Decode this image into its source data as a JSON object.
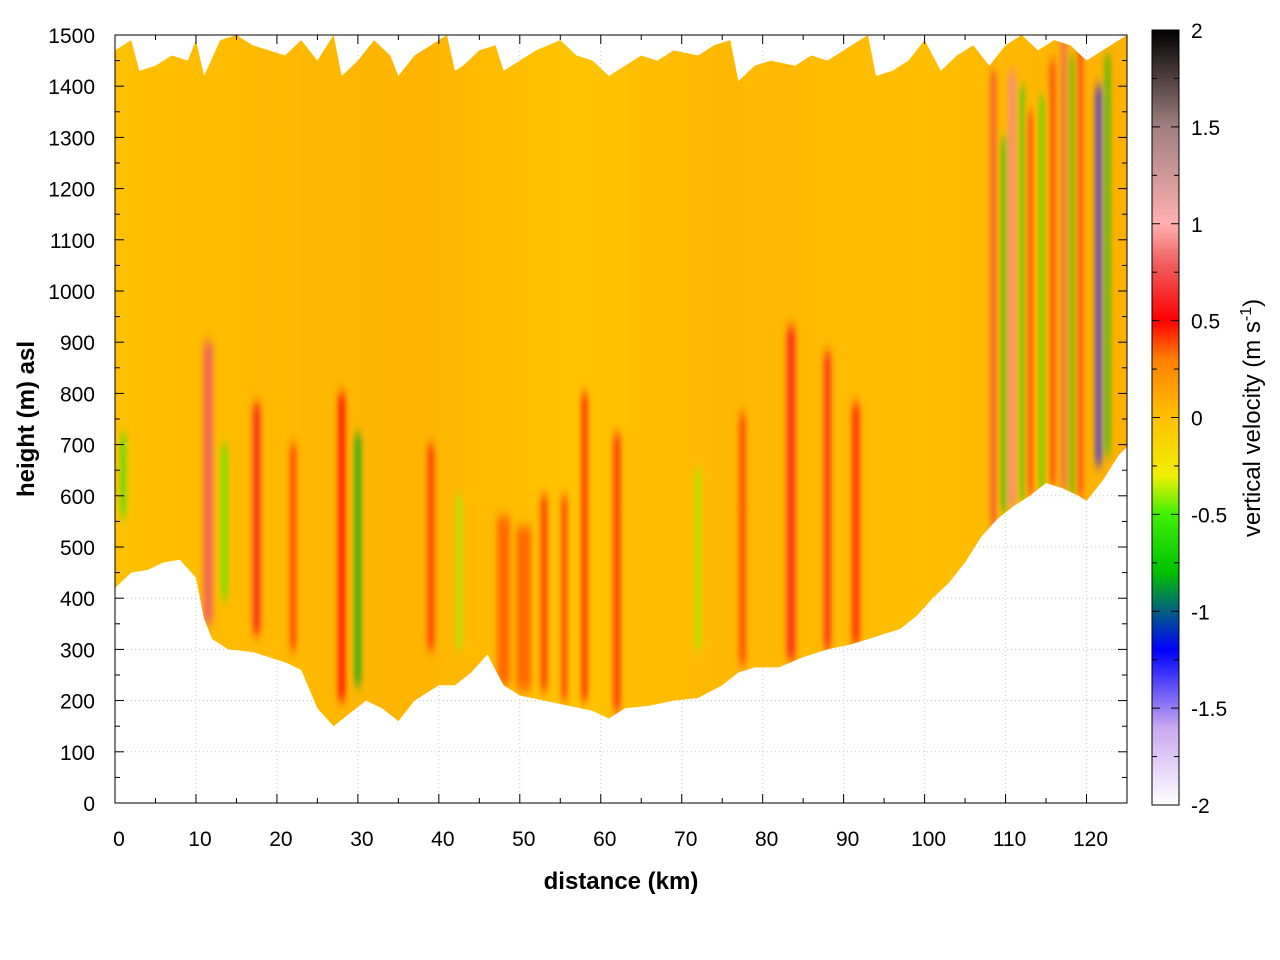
{
  "chart_data": {
    "type": "heatmap",
    "title": "",
    "xlabel": "distance (km)",
    "ylabel": "height (m) asl",
    "xlim": [
      0,
      125
    ],
    "ylim": [
      0,
      1500
    ],
    "xticks": [
      0,
      10,
      20,
      30,
      40,
      50,
      60,
      70,
      80,
      90,
      100,
      110,
      120
    ],
    "yticks": [
      0,
      100,
      200,
      300,
      400,
      500,
      600,
      700,
      800,
      900,
      1000,
      1100,
      1200,
      1300,
      1400,
      1500
    ],
    "grid": true,
    "colorbar": {
      "label_main": "vertical velocity (m s",
      "label_sup": "-1",
      "label_close": ")",
      "range": [
        -2,
        2
      ],
      "ticks": [
        "2",
        "1.5",
        "1",
        "0.5",
        "0",
        "-0.5",
        "-1",
        "-1.5",
        "-2"
      ],
      "stops": [
        {
          "v": -2.0,
          "color": "#ffffff"
        },
        {
          "v": -1.6,
          "color": "#c8a8f0"
        },
        {
          "v": -1.2,
          "color": "#0000ff"
        },
        {
          "v": -0.8,
          "color": "#00c000"
        },
        {
          "v": -0.5,
          "color": "#40f000"
        },
        {
          "v": -0.3,
          "color": "#f0f000"
        },
        {
          "v": 0.0,
          "color": "#ffc000"
        },
        {
          "v": 0.3,
          "color": "#ff8000"
        },
        {
          "v": 0.5,
          "color": "#ff0000"
        },
        {
          "v": 0.8,
          "color": "#f06060"
        },
        {
          "v": 1.0,
          "color": "#ffb0b0"
        },
        {
          "v": 1.5,
          "color": "#a08080"
        },
        {
          "v": 2.0,
          "color": "#000000"
        }
      ]
    },
    "ground_height_m": [
      [
        0,
        420
      ],
      [
        2,
        450
      ],
      [
        4,
        455
      ],
      [
        6,
        470
      ],
      [
        8,
        475
      ],
      [
        10,
        440
      ],
      [
        11,
        360
      ],
      [
        12,
        320
      ],
      [
        14,
        300
      ],
      [
        17,
        295
      ],
      [
        19,
        285
      ],
      [
        21,
        275
      ],
      [
        23,
        260
      ],
      [
        25,
        185
      ],
      [
        27,
        150
      ],
      [
        29,
        175
      ],
      [
        31,
        200
      ],
      [
        33,
        185
      ],
      [
        35,
        160
      ],
      [
        37,
        200
      ],
      [
        40,
        230
      ],
      [
        42,
        230
      ],
      [
        44,
        255
      ],
      [
        46,
        290
      ],
      [
        48,
        230
      ],
      [
        50,
        210
      ],
      [
        53,
        200
      ],
      [
        56,
        190
      ],
      [
        59,
        180
      ],
      [
        61,
        165
      ],
      [
        63,
        185
      ],
      [
        66,
        190
      ],
      [
        69,
        200
      ],
      [
        72,
        205
      ],
      [
        75,
        230
      ],
      [
        77,
        255
      ],
      [
        79,
        265
      ],
      [
        82,
        265
      ],
      [
        85,
        285
      ],
      [
        88,
        300
      ],
      [
        91,
        310
      ],
      [
        94,
        325
      ],
      [
        97,
        340
      ],
      [
        99,
        365
      ],
      [
        101,
        400
      ],
      [
        103,
        430
      ],
      [
        105,
        470
      ],
      [
        107,
        520
      ],
      [
        109,
        555
      ],
      [
        111,
        580
      ],
      [
        113,
        600
      ],
      [
        115,
        625
      ],
      [
        117,
        615
      ],
      [
        119,
        600
      ],
      [
        120,
        590
      ],
      [
        122,
        630
      ],
      [
        124,
        680
      ],
      [
        125,
        695
      ]
    ],
    "top_height_m": [
      [
        0,
        1470
      ],
      [
        2,
        1490
      ],
      [
        3,
        1430
      ],
      [
        5,
        1440
      ],
      [
        7,
        1460
      ],
      [
        9,
        1450
      ],
      [
        10,
        1490
      ],
      [
        11,
        1420
      ],
      [
        13,
        1490
      ],
      [
        15,
        1500
      ],
      [
        17,
        1480
      ],
      [
        19,
        1470
      ],
      [
        21,
        1460
      ],
      [
        23,
        1490
      ],
      [
        25,
        1450
      ],
      [
        27,
        1500
      ],
      [
        28,
        1420
      ],
      [
        30,
        1450
      ],
      [
        32,
        1490
      ],
      [
        34,
        1460
      ],
      [
        35,
        1420
      ],
      [
        37,
        1460
      ],
      [
        39,
        1480
      ],
      [
        41,
        1500
      ],
      [
        42,
        1430
      ],
      [
        43,
        1440
      ],
      [
        45,
        1470
      ],
      [
        47,
        1480
      ],
      [
        48,
        1430
      ],
      [
        50,
        1450
      ],
      [
        52,
        1470
      ],
      [
        55,
        1490
      ],
      [
        57,
        1460
      ],
      [
        59,
        1450
      ],
      [
        61,
        1420
      ],
      [
        63,
        1440
      ],
      [
        65,
        1460
      ],
      [
        67,
        1450
      ],
      [
        69,
        1470
      ],
      [
        72,
        1460
      ],
      [
        74,
        1480
      ],
      [
        76,
        1490
      ],
      [
        77,
        1410
      ],
      [
        79,
        1440
      ],
      [
        81,
        1450
      ],
      [
        84,
        1440
      ],
      [
        86,
        1460
      ],
      [
        88,
        1450
      ],
      [
        90,
        1470
      ],
      [
        93,
        1500
      ],
      [
        94,
        1420
      ],
      [
        96,
        1430
      ],
      [
        98,
        1450
      ],
      [
        100,
        1490
      ],
      [
        102,
        1430
      ],
      [
        104,
        1460
      ],
      [
        106,
        1480
      ],
      [
        108,
        1440
      ],
      [
        110,
        1480
      ],
      [
        112,
        1500
      ],
      [
        114,
        1470
      ],
      [
        116,
        1490
      ],
      [
        118,
        1480
      ],
      [
        120,
        1450
      ],
      [
        122,
        1470
      ],
      [
        124,
        1490
      ],
      [
        125,
        1500
      ]
    ],
    "updraft_streaks": [
      {
        "x": 11.5,
        "w": 1.2,
        "v": 0.8,
        "y0": 350,
        "y1": 900
      },
      {
        "x": 17.5,
        "w": 0.9,
        "v": 0.6,
        "y0": 330,
        "y1": 780
      },
      {
        "x": 22.0,
        "w": 0.6,
        "v": 0.45,
        "y0": 300,
        "y1": 700
      },
      {
        "x": 28.0,
        "w": 0.8,
        "v": 0.5,
        "y0": 200,
        "y1": 800
      },
      {
        "x": 39.0,
        "w": 0.7,
        "v": 0.45,
        "y0": 300,
        "y1": 700
      },
      {
        "x": 48.0,
        "w": 1.6,
        "v": 0.35,
        "y0": 230,
        "y1": 560
      },
      {
        "x": 50.5,
        "w": 1.8,
        "v": 0.35,
        "y0": 220,
        "y1": 540
      },
      {
        "x": 53.0,
        "w": 0.7,
        "v": 0.45,
        "y0": 220,
        "y1": 600
      },
      {
        "x": 55.5,
        "w": 0.6,
        "v": 0.45,
        "y0": 200,
        "y1": 600
      },
      {
        "x": 58.0,
        "w": 0.6,
        "v": 0.5,
        "y0": 200,
        "y1": 800
      },
      {
        "x": 62.0,
        "w": 0.7,
        "v": 0.55,
        "y0": 180,
        "y1": 720
      },
      {
        "x": 77.5,
        "w": 0.6,
        "v": 0.45,
        "y0": 270,
        "y1": 760
      },
      {
        "x": 83.5,
        "w": 1.0,
        "v": 0.6,
        "y0": 280,
        "y1": 930
      },
      {
        "x": 88.0,
        "w": 0.8,
        "v": 0.6,
        "y0": 300,
        "y1": 880
      },
      {
        "x": 91.5,
        "w": 0.8,
        "v": 0.55,
        "y0": 310,
        "y1": 780
      },
      {
        "x": 108.5,
        "w": 0.6,
        "v": 0.7,
        "y0": 540,
        "y1": 1430
      },
      {
        "x": 110.8,
        "w": 0.9,
        "v": 0.9,
        "y0": 580,
        "y1": 1430
      },
      {
        "x": 113.0,
        "w": 0.5,
        "v": 0.6,
        "y0": 600,
        "y1": 1350
      },
      {
        "x": 115.8,
        "w": 0.5,
        "v": 0.6,
        "y0": 620,
        "y1": 1450
      },
      {
        "x": 117.2,
        "w": 0.6,
        "v": 0.8,
        "y0": 610,
        "y1": 1500
      },
      {
        "x": 119.2,
        "w": 0.5,
        "v": 0.6,
        "y0": 600,
        "y1": 1480
      }
    ],
    "downdraft_streaks": [
      {
        "x": 1.0,
        "w": 0.6,
        "v": -0.55,
        "y0": 560,
        "y1": 720
      },
      {
        "x": 13.5,
        "w": 0.6,
        "v": -0.5,
        "y0": 400,
        "y1": 700
      },
      {
        "x": 30.0,
        "w": 0.7,
        "v": -0.85,
        "y0": 230,
        "y1": 720
      },
      {
        "x": 42.5,
        "w": 0.6,
        "v": -0.4,
        "y0": 300,
        "y1": 600
      },
      {
        "x": 72.0,
        "w": 0.6,
        "v": -0.4,
        "y0": 300,
        "y1": 650
      },
      {
        "x": 109.8,
        "w": 0.6,
        "v": -0.8,
        "y0": 570,
        "y1": 1300
      },
      {
        "x": 112.0,
        "w": 0.5,
        "v": -0.7,
        "y0": 590,
        "y1": 1400
      },
      {
        "x": 114.5,
        "w": 0.5,
        "v": -0.6,
        "y0": 610,
        "y1": 1380
      },
      {
        "x": 118.2,
        "w": 0.5,
        "v": -0.8,
        "y0": 600,
        "y1": 1460
      },
      {
        "x": 121.5,
        "w": 0.7,
        "v": -1.3,
        "y0": 660,
        "y1": 1400
      },
      {
        "x": 122.6,
        "w": 0.5,
        "v": -0.8,
        "y0": 680,
        "y1": 1460
      }
    ]
  }
}
